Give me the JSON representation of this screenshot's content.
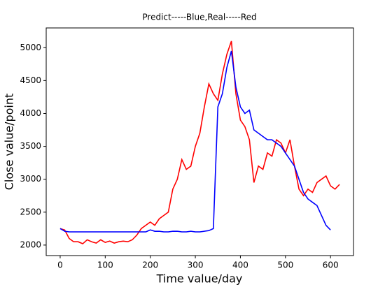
{
  "chart_data": {
    "type": "line",
    "title": "Predict-----Blue,Real-----Red",
    "x_label": "Time value/day",
    "y_label": "Close value/point",
    "x": [
      0,
      10,
      20,
      30,
      40,
      50,
      60,
      70,
      80,
      90,
      100,
      110,
      120,
      130,
      140,
      150,
      160,
      170,
      180,
      190,
      200,
      210,
      220,
      230,
      240,
      250,
      260,
      270,
      280,
      290,
      300,
      310,
      320,
      330,
      340,
      350,
      360,
      370,
      380,
      390,
      400,
      410,
      420,
      430,
      440,
      450,
      460,
      470,
      480,
      490,
      500,
      510,
      520,
      530,
      540,
      550,
      560,
      570,
      580,
      590,
      600,
      610,
      620
    ],
    "series": [
      {
        "color": "#ff0000",
        "values": [
          2250,
          2230,
          2100,
          2050,
          2050,
          2020,
          2080,
          2050,
          2030,
          2080,
          2040,
          2060,
          2030,
          2050,
          2060,
          2050,
          2080,
          2150,
          2250,
          2300,
          2350,
          2300,
          2400,
          2450,
          2500,
          2850,
          3000,
          3300,
          3150,
          3200,
          3500,
          3700,
          4100,
          4450,
          4300,
          4200,
          4600,
          4900,
          5100,
          4300,
          3900,
          3800,
          3600,
          2950,
          3200,
          3150,
          3400,
          3350,
          3600,
          3550,
          3400,
          3600,
          3200,
          2850,
          2750,
          2850,
          2800,
          2950,
          3000,
          3050,
          2900,
          2850,
          2920
        ]
      },
      {
        "color": "#0000ff",
        "values": [
          2250,
          2210,
          2200,
          2200,
          2200,
          2200,
          2200,
          2200,
          2200,
          2200,
          2200,
          2200,
          2200,
          2200,
          2200,
          2200,
          2200,
          2200,
          2200,
          2200,
          2230,
          2210,
          2210,
          2200,
          2200,
          2210,
          2210,
          2200,
          2200,
          2210,
          2200,
          2200,
          2210,
          2220,
          2250,
          4100,
          4300,
          4700,
          4950,
          4400,
          4100,
          4000,
          4050,
          3750,
          3700,
          3650,
          3600,
          3600,
          3550,
          3500,
          3400,
          3300,
          3200,
          3000,
          2800,
          2700,
          2650,
          2600,
          2450,
          2300,
          2230,
          null,
          null
        ]
      }
    ],
    "xlim": [
      -31,
      651
    ],
    "ylim": [
      1840,
      5300
    ],
    "xticks": [
      0,
      100,
      200,
      300,
      400,
      500,
      600
    ],
    "yticks": [
      2000,
      2500,
      3000,
      3500,
      4000,
      4500,
      5000
    ],
    "grid": false
  }
}
